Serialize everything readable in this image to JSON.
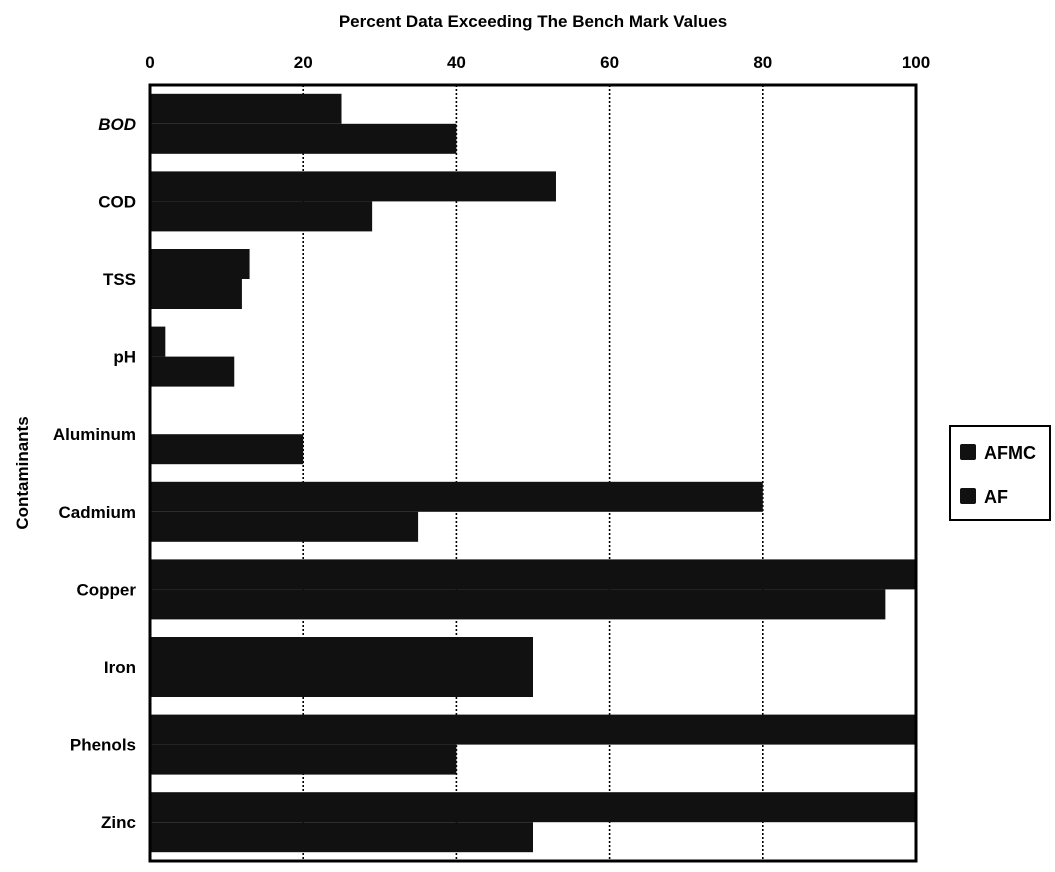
{
  "chart_data": {
    "type": "bar",
    "orientation": "horizontal",
    "title": "Percent Data Exceeding The Bench Mark Values",
    "ylabel": "Contaminants",
    "xlabel": "",
    "xlim": [
      0,
      100
    ],
    "xticks": [
      "0",
      "20",
      "40",
      "60",
      "80",
      "100"
    ],
    "categories": [
      "BOD",
      "COD",
      "TSS",
      "pH",
      "Aluminum",
      "Cadmium",
      "Copper",
      "Iron",
      "Phenols",
      "Zinc"
    ],
    "series": [
      {
        "name": "AFMC",
        "color": "#111111",
        "values": [
          25,
          53,
          13,
          2,
          0,
          80,
          100,
          50,
          100,
          100
        ]
      },
      {
        "name": "AF",
        "color": "#111111",
        "values": [
          40,
          29,
          12,
          11,
          20,
          35,
          96,
          50,
          40,
          50
        ]
      }
    ],
    "grid": "vertical dotted",
    "legend_position": "right"
  }
}
